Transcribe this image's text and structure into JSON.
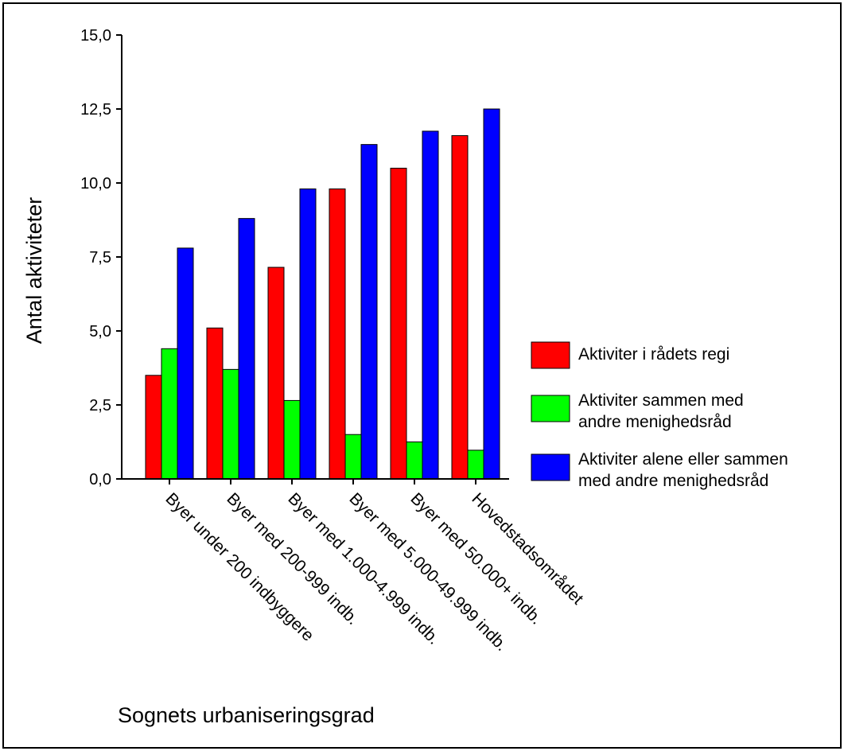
{
  "chart_data": {
    "type": "bar",
    "categories": [
      "Byer under 200 indbyggere",
      "Byer med 200-999 indb.",
      "Byer med 1.000-4.999 indb.",
      "Byer med 5.000-49.999 indb.",
      "Byer med 50.000+ indb.",
      "Hovedstadsområdet"
    ],
    "series": [
      {
        "name_lines": [
          "Aktiviter i rådets regi"
        ],
        "color": "#ff0000",
        "values": [
          3.5,
          5.1,
          7.15,
          9.8,
          10.5,
          11.6
        ]
      },
      {
        "name_lines": [
          "Aktiviter sammen med",
          "andre menighedsråd"
        ],
        "color": "#00ff00",
        "values": [
          4.4,
          3.7,
          2.65,
          1.5,
          1.25,
          0.97
        ]
      },
      {
        "name_lines": [
          "Aktiviter alene eller sammen",
          "med andre menighedsråd"
        ],
        "color": "#0000ff",
        "values": [
          7.8,
          8.8,
          9.8,
          11.3,
          11.75,
          12.5
        ]
      }
    ],
    "ylabel": "Antal aktiviteter",
    "xlabel": "Sognets urbaniseringsgrad",
    "ylim": [
      0,
      15
    ],
    "yticks": [
      "0,0",
      "2,5",
      "5,0",
      "7,5",
      "10,0",
      "12,5",
      "15,0"
    ],
    "legend_position": "right",
    "grid": false
  }
}
